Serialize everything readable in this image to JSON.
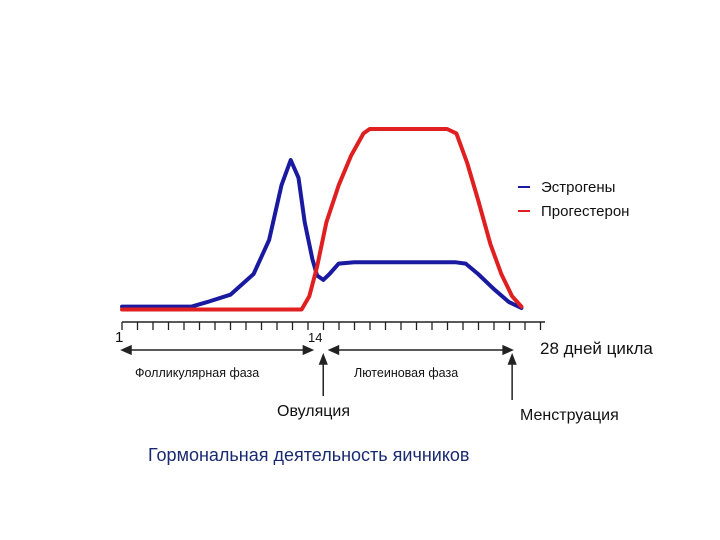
{
  "chart_data": {
    "type": "line",
    "title": "Гормональная деятельность яичников",
    "x_start_label": "1",
    "x_mid_label": "14",
    "x_end_label": "28 дней цикла",
    "xlim": [
      1,
      28
    ],
    "series": [
      {
        "name": "Эстрогены",
        "color": "#1a1aa0",
        "points": [
          [
            1,
            0.3
          ],
          [
            5.5,
            0.3
          ],
          [
            6.5,
            0.6
          ],
          [
            8,
            1.1
          ],
          [
            9.5,
            2.5
          ],
          [
            10.5,
            4.8
          ],
          [
            11.3,
            8.5
          ],
          [
            11.9,
            10.2
          ],
          [
            12.4,
            9.0
          ],
          [
            12.8,
            6.0
          ],
          [
            13.3,
            3.5
          ],
          [
            13.6,
            2.4
          ],
          [
            14.0,
            2.1
          ],
          [
            14.4,
            2.5
          ],
          [
            15.0,
            3.2
          ],
          [
            16.0,
            3.3
          ],
          [
            22.5,
            3.3
          ],
          [
            23.2,
            3.2
          ],
          [
            24.0,
            2.5
          ],
          [
            25.0,
            1.5
          ],
          [
            26.0,
            0.6
          ],
          [
            26.8,
            0.2
          ]
        ]
      },
      {
        "name": "Прогестерон",
        "color": "#e02020",
        "points": [
          [
            1,
            0.1
          ],
          [
            12.6,
            0.1
          ],
          [
            13.1,
            1.0
          ],
          [
            13.6,
            3.0
          ],
          [
            14.2,
            6.0
          ],
          [
            15.0,
            8.5
          ],
          [
            15.8,
            10.5
          ],
          [
            16.6,
            12.0
          ],
          [
            17.0,
            12.3
          ],
          [
            22.0,
            12.3
          ],
          [
            22.6,
            12.0
          ],
          [
            23.3,
            10.0
          ],
          [
            24.0,
            7.5
          ],
          [
            24.8,
            4.5
          ],
          [
            25.5,
            2.5
          ],
          [
            26.2,
            1.0
          ],
          [
            26.8,
            0.3
          ]
        ]
      }
    ],
    "legend": {
      "position": "right"
    },
    "annotations": {
      "follicular_phase": "Фолликулярная фаза",
      "luteal_phase": "Лютеиновая фаза",
      "ovulation": "Овуляция",
      "menstruation": "Менструация"
    },
    "phase_ranges": {
      "follicular": [
        1,
        13.3
      ],
      "luteal": [
        14.4,
        26.2
      ]
    },
    "event_days": {
      "ovulation": 14,
      "menstruation": 26.2
    }
  }
}
